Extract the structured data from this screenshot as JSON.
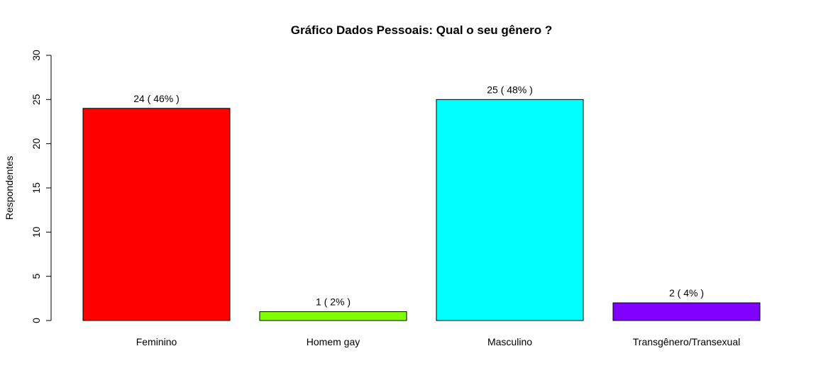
{
  "chart_data": {
    "type": "bar",
    "title": "Gráfico Dados Pessoais: Qual o seu gênero ?",
    "xlabel": "",
    "ylabel": "Respondentes",
    "categories": [
      "Feminino",
      "Homem gay",
      "Masculino",
      "Transgênero/Transexual"
    ],
    "values": [
      24,
      1,
      25,
      2
    ],
    "data_labels": [
      "24  ( 46% )",
      "1  ( 2% )",
      "25  ( 48% )",
      "2  ( 4% )"
    ],
    "colors": [
      "#ff0000",
      "#80ff00",
      "#00ffff",
      "#8000ff"
    ],
    "ylim": [
      0,
      30
    ],
    "yticks": [
      "0",
      "5",
      "10",
      "15",
      "20",
      "25",
      "30"
    ],
    "grid": false,
    "legend": "none"
  }
}
